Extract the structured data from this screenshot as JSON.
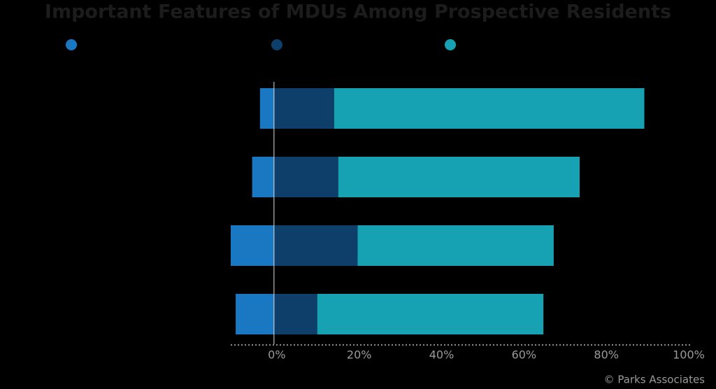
{
  "chart_data": {
    "type": "diverging-bar",
    "title": "Important Features of MDUs Among Prospective Residents",
    "source": "© Parks Associates",
    "categories": [
      null,
      null,
      null,
      null
    ],
    "series": [
      {
        "color": "#1a78c2",
        "values": [
          -3.4,
          -5.3,
          -10.5,
          -9.3
        ]
      },
      {
        "color": "#0e3f6b",
        "values": [
          14.6,
          15.6,
          20.3,
          10.5
        ]
      },
      {
        "color": "#17a2b4",
        "values": [
          75.3,
          58.6,
          47.6,
          54.9
        ]
      }
    ],
    "xlim": [
      -10.5,
      100
    ],
    "xticks": [
      {
        "value": 0,
        "label": "0%"
      },
      {
        "value": 20,
        "label": "20%"
      },
      {
        "value": 40,
        "label": "40%"
      },
      {
        "value": 60,
        "label": "60%"
      },
      {
        "value": 80,
        "label": "80%"
      },
      {
        "value": 100,
        "label": "100%"
      }
    ]
  }
}
